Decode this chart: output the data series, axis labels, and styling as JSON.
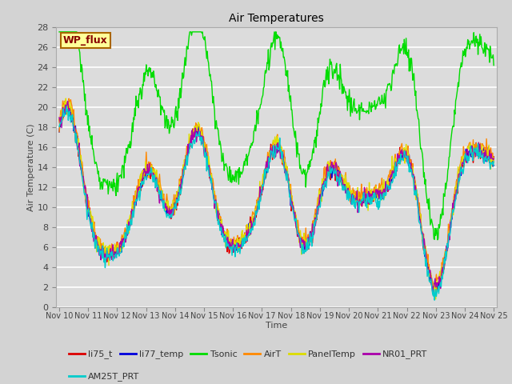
{
  "title": "Air Temperatures",
  "xlabel": "Time",
  "ylabel": "Air Temperature (C)",
  "ylim": [
    0,
    28
  ],
  "bg_color": "#dcdcdc",
  "fig_bg_color": "#d3d3d3",
  "x_tick_labels": [
    "Nov 10",
    "Nov 11",
    "Nov 12",
    "Nov 13",
    "Nov 14",
    "Nov 15",
    "Nov 16",
    "Nov 17",
    "Nov 18",
    "Nov 19",
    "Nov 20",
    "Nov 21",
    "Nov 22",
    "Nov 23",
    "Nov 24",
    "Nov 25"
  ],
  "legend_entries": [
    {
      "label": "li75_t",
      "color": "#dd0000"
    },
    {
      "label": "li77_temp",
      "color": "#0000dd"
    },
    {
      "label": "Tsonic",
      "color": "#00dd00"
    },
    {
      "label": "AirT",
      "color": "#ff8800"
    },
    {
      "label": "PanelTemp",
      "color": "#dddd00"
    },
    {
      "label": "NR01_PRT",
      "color": "#aa00aa"
    },
    {
      "label": "AM25T_PRT",
      "color": "#00cccc"
    }
  ],
  "wp_flux_box": {
    "text": "WP_flux",
    "text_color": "#880000",
    "bg_color": "#ffff99",
    "edge_color": "#aa6600"
  }
}
